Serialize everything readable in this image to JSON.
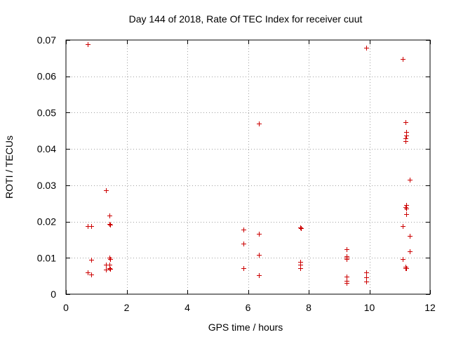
{
  "chart_data": {
    "type": "scatter",
    "title": "Day 144 of 2018, Rate Of TEC Index for receiver cuut",
    "xlabel": "GPS time / hours",
    "ylabel": "ROTI / TECUs",
    "xlim": [
      0,
      12
    ],
    "ylim": [
      0,
      0.07
    ],
    "xticks": [
      0,
      2,
      4,
      6,
      8,
      10,
      12
    ],
    "xtick_labels": [
      "0",
      "2",
      "4",
      "6",
      "8",
      "10",
      "12"
    ],
    "yticks": [
      0,
      0.01,
      0.02,
      0.03,
      0.04,
      0.05,
      0.06,
      0.07
    ],
    "ytick_labels": [
      "0",
      "0.01",
      "0.02",
      "0.03",
      "0.04",
      "0.05",
      "0.06",
      "0.07"
    ],
    "grid": true,
    "marker": "+",
    "color": "#cc0000",
    "series": [
      {
        "name": "ROTI",
        "points": [
          [
            0.72,
            0.0688
          ],
          [
            0.72,
            0.0188
          ],
          [
            0.84,
            0.0188
          ],
          [
            0.72,
            0.006
          ],
          [
            0.84,
            0.0054
          ],
          [
            0.84,
            0.0094
          ],
          [
            1.32,
            0.0287
          ],
          [
            1.32,
            0.0082
          ],
          [
            1.32,
            0.0067
          ],
          [
            1.44,
            0.0217
          ],
          [
            1.44,
            0.0193
          ],
          [
            1.46,
            0.0191
          ],
          [
            1.44,
            0.0101
          ],
          [
            1.46,
            0.0097
          ],
          [
            1.44,
            0.0082
          ],
          [
            1.44,
            0.0072
          ],
          [
            1.46,
            0.0069
          ],
          [
            5.84,
            0.0178
          ],
          [
            5.84,
            0.014
          ],
          [
            5.84,
            0.0072
          ],
          [
            6.36,
            0.0469
          ],
          [
            6.36,
            0.0166
          ],
          [
            6.36,
            0.0109
          ],
          [
            6.36,
            0.0052
          ],
          [
            7.72,
            0.0183
          ],
          [
            7.74,
            0.0182
          ],
          [
            7.72,
            0.0088
          ],
          [
            7.72,
            0.0082
          ],
          [
            7.72,
            0.0071
          ],
          [
            9.24,
            0.0124
          ],
          [
            9.26,
            0.0123
          ],
          [
            9.24,
            0.0104
          ],
          [
            9.26,
            0.01
          ],
          [
            9.24,
            0.0097
          ],
          [
            9.24,
            0.0048
          ],
          [
            9.24,
            0.0037
          ],
          [
            9.24,
            0.0031
          ],
          [
            9.9,
            0.0679
          ],
          [
            9.9,
            0.0059
          ],
          [
            9.9,
            0.0047
          ],
          [
            9.9,
            0.0034
          ],
          [
            11.1,
            0.0647
          ],
          [
            11.1,
            0.0187
          ],
          [
            11.1,
            0.0097
          ],
          [
            11.2,
            0.0473
          ],
          [
            11.22,
            0.0447
          ],
          [
            11.22,
            0.0437
          ],
          [
            11.2,
            0.0429
          ],
          [
            11.2,
            0.0421
          ],
          [
            11.34,
            0.0315
          ],
          [
            11.22,
            0.0246
          ],
          [
            11.2,
            0.0239
          ],
          [
            11.22,
            0.0236
          ],
          [
            11.22,
            0.022
          ],
          [
            11.34,
            0.0161
          ],
          [
            11.34,
            0.0118
          ],
          [
            11.2,
            0.0075
          ],
          [
            11.22,
            0.0071
          ],
          [
            11.2,
            0.0072
          ]
        ]
      }
    ]
  }
}
